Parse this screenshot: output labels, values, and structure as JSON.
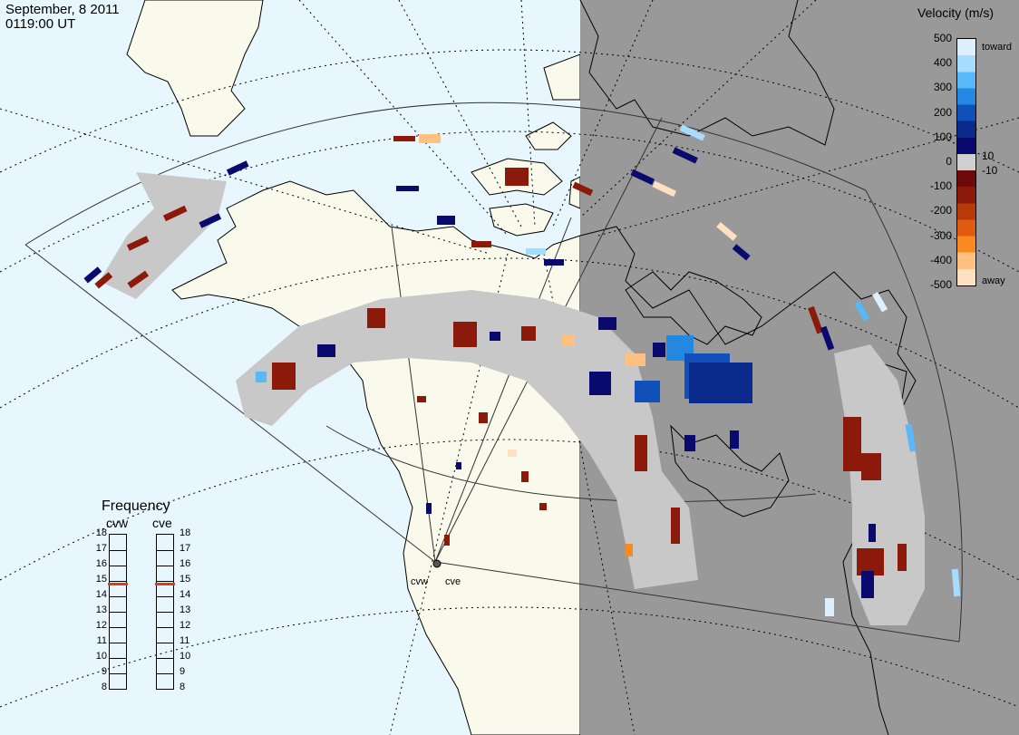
{
  "header": {
    "date": "September, 8 2011",
    "time": "0119:00 UT"
  },
  "velocity_scale": {
    "title": "Velocity (m/s)",
    "ticks": [
      "500",
      "400",
      "300",
      "200",
      "100",
      "0",
      "-100",
      "-200",
      "-300",
      "-400",
      "-500"
    ],
    "inner_ticks": [
      "10",
      "-10"
    ],
    "toward_label": "toward",
    "away_label": "away",
    "colors": [
      "#dcf0ff",
      "#a8dcff",
      "#58b8f8",
      "#2488e0",
      "#1050b8",
      "#0a2a8c",
      "#0a0a6e",
      "#cfcfcf",
      "#6e0a0a",
      "#8c1a0a",
      "#b83a0a",
      "#e05a10",
      "#f88a20",
      "#ffc080",
      "#ffe0c0"
    ]
  },
  "frequency_panel": {
    "title": "Frequency",
    "radars": [
      "cvw",
      "cve"
    ],
    "ticks": [
      "18",
      "17",
      "16",
      "15",
      "14",
      "13",
      "12",
      "11",
      "10",
      "9",
      "8"
    ],
    "selected": {
      "cvw": 14.8,
      "cve": 14.8
    },
    "marker_color": "#e03c10"
  },
  "sites": {
    "west_label": "cvw",
    "east_label": "cve"
  },
  "map_colors": {
    "ocean": "#e8f6fe",
    "land": "#fafaec",
    "night_shade": "#999999",
    "ground_scatter": "#c8c8c8",
    "coastline": "#000000"
  }
}
